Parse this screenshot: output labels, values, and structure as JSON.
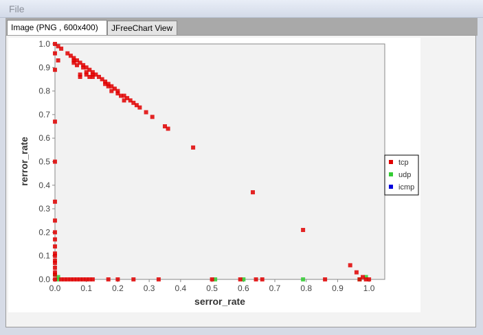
{
  "menu": {
    "file_label": "File"
  },
  "tabs": [
    {
      "label": "Image (PNG , 600x400)",
      "active": true
    },
    {
      "label": "JFreeChart View",
      "active": false
    }
  ],
  "colors": {
    "tcp": "#e00000",
    "udp": "#33cc33",
    "icmp": "#0000dd",
    "plot_bg": "#f2f2f2"
  },
  "chart_data": {
    "type": "scatter",
    "xlabel": "serror_rate",
    "ylabel": "rerror_rate",
    "xlim": [
      0.0,
      1.05
    ],
    "ylim": [
      0.0,
      1.0
    ],
    "xticks": [
      "0.0",
      "0.1",
      "0.2",
      "0.3",
      "0.4",
      "0.5",
      "0.6",
      "0.7",
      "0.8",
      "0.9",
      "1.0"
    ],
    "yticks": [
      "0.0",
      "0.1",
      "0.2",
      "0.3",
      "0.4",
      "0.5",
      "0.6",
      "0.7",
      "0.8",
      "0.9",
      "1.0"
    ],
    "grid": false,
    "legend_position": "right",
    "series": [
      {
        "name": "tcp",
        "color": "#e00000",
        "points": [
          [
            0.0,
            1.0
          ],
          [
            0.01,
            0.99
          ],
          [
            0.02,
            0.98
          ],
          [
            0.04,
            0.96
          ],
          [
            0.05,
            0.95
          ],
          [
            0.06,
            0.94
          ],
          [
            0.06,
            0.93
          ],
          [
            0.07,
            0.93
          ],
          [
            0.08,
            0.92
          ],
          [
            0.09,
            0.91
          ],
          [
            0.1,
            0.9
          ],
          [
            0.11,
            0.89
          ],
          [
            0.12,
            0.88
          ],
          [
            0.13,
            0.87
          ],
          [
            0.14,
            0.86
          ],
          [
            0.15,
            0.85
          ],
          [
            0.16,
            0.84
          ],
          [
            0.17,
            0.83
          ],
          [
            0.18,
            0.82
          ],
          [
            0.19,
            0.81
          ],
          [
            0.2,
            0.8
          ],
          [
            0.22,
            0.78
          ],
          [
            0.23,
            0.77
          ],
          [
            0.25,
            0.75
          ],
          [
            0.26,
            0.74
          ],
          [
            0.27,
            0.73
          ],
          [
            0.29,
            0.71
          ],
          [
            0.31,
            0.69
          ],
          [
            0.35,
            0.65
          ],
          [
            0.36,
            0.64
          ],
          [
            0.44,
            0.56
          ],
          [
            0.63,
            0.37
          ],
          [
            0.79,
            0.21
          ],
          [
            0.94,
            0.06
          ],
          [
            0.96,
            0.03
          ],
          [
            0.98,
            0.01
          ],
          [
            0.99,
            0.0
          ],
          [
            0.0,
            0.96
          ],
          [
            0.0,
            0.89
          ],
          [
            0.01,
            0.93
          ],
          [
            0.08,
            0.86
          ],
          [
            0.08,
            0.87
          ],
          [
            0.1,
            0.87
          ],
          [
            0.11,
            0.86
          ],
          [
            0.12,
            0.87
          ],
          [
            0.17,
            0.82
          ],
          [
            0.2,
            0.79
          ],
          [
            0.21,
            0.78
          ],
          [
            0.22,
            0.76
          ],
          [
            0.06,
            0.92
          ],
          [
            0.07,
            0.91
          ],
          [
            0.09,
            0.9
          ],
          [
            0.1,
            0.88
          ],
          [
            0.12,
            0.86
          ],
          [
            0.16,
            0.83
          ],
          [
            0.18,
            0.8
          ],
          [
            0.24,
            0.76
          ],
          [
            0.0,
            0.67
          ],
          [
            0.0,
            0.5
          ],
          [
            0.0,
            0.33
          ],
          [
            0.0,
            0.25
          ],
          [
            0.0,
            0.2
          ],
          [
            0.0,
            0.17
          ],
          [
            0.0,
            0.14
          ],
          [
            0.0,
            0.11
          ],
          [
            0.0,
            0.1
          ],
          [
            0.0,
            0.08
          ],
          [
            0.0,
            0.07
          ],
          [
            0.0,
            0.05
          ],
          [
            0.0,
            0.03
          ],
          [
            0.0,
            0.02
          ],
          [
            0.0,
            0.0
          ],
          [
            0.02,
            0.0
          ],
          [
            0.03,
            0.0
          ],
          [
            0.04,
            0.0
          ],
          [
            0.05,
            0.0
          ],
          [
            0.06,
            0.0
          ],
          [
            0.07,
            0.0
          ],
          [
            0.08,
            0.0
          ],
          [
            0.09,
            0.0
          ],
          [
            0.1,
            0.0
          ],
          [
            0.11,
            0.0
          ],
          [
            0.12,
            0.0
          ],
          [
            0.17,
            0.0
          ],
          [
            0.2,
            0.0
          ],
          [
            0.25,
            0.0
          ],
          [
            0.33,
            0.0
          ],
          [
            0.5,
            0.0
          ],
          [
            0.59,
            0.0
          ],
          [
            0.64,
            0.0
          ],
          [
            0.66,
            0.0
          ],
          [
            0.86,
            0.0
          ],
          [
            0.97,
            0.0
          ],
          [
            1.0,
            0.0
          ]
        ]
      },
      {
        "name": "udp",
        "color": "#33cc33",
        "points": [
          [
            0.0,
            0.02
          ],
          [
            0.01,
            0.01
          ],
          [
            0.01,
            0.0
          ],
          [
            0.51,
            0.0
          ],
          [
            0.6,
            0.0
          ],
          [
            0.79,
            0.0
          ],
          [
            0.97,
            0.0
          ],
          [
            0.99,
            0.01
          ]
        ]
      },
      {
        "name": "icmp",
        "color": "#0000dd",
        "points": []
      }
    ]
  }
}
